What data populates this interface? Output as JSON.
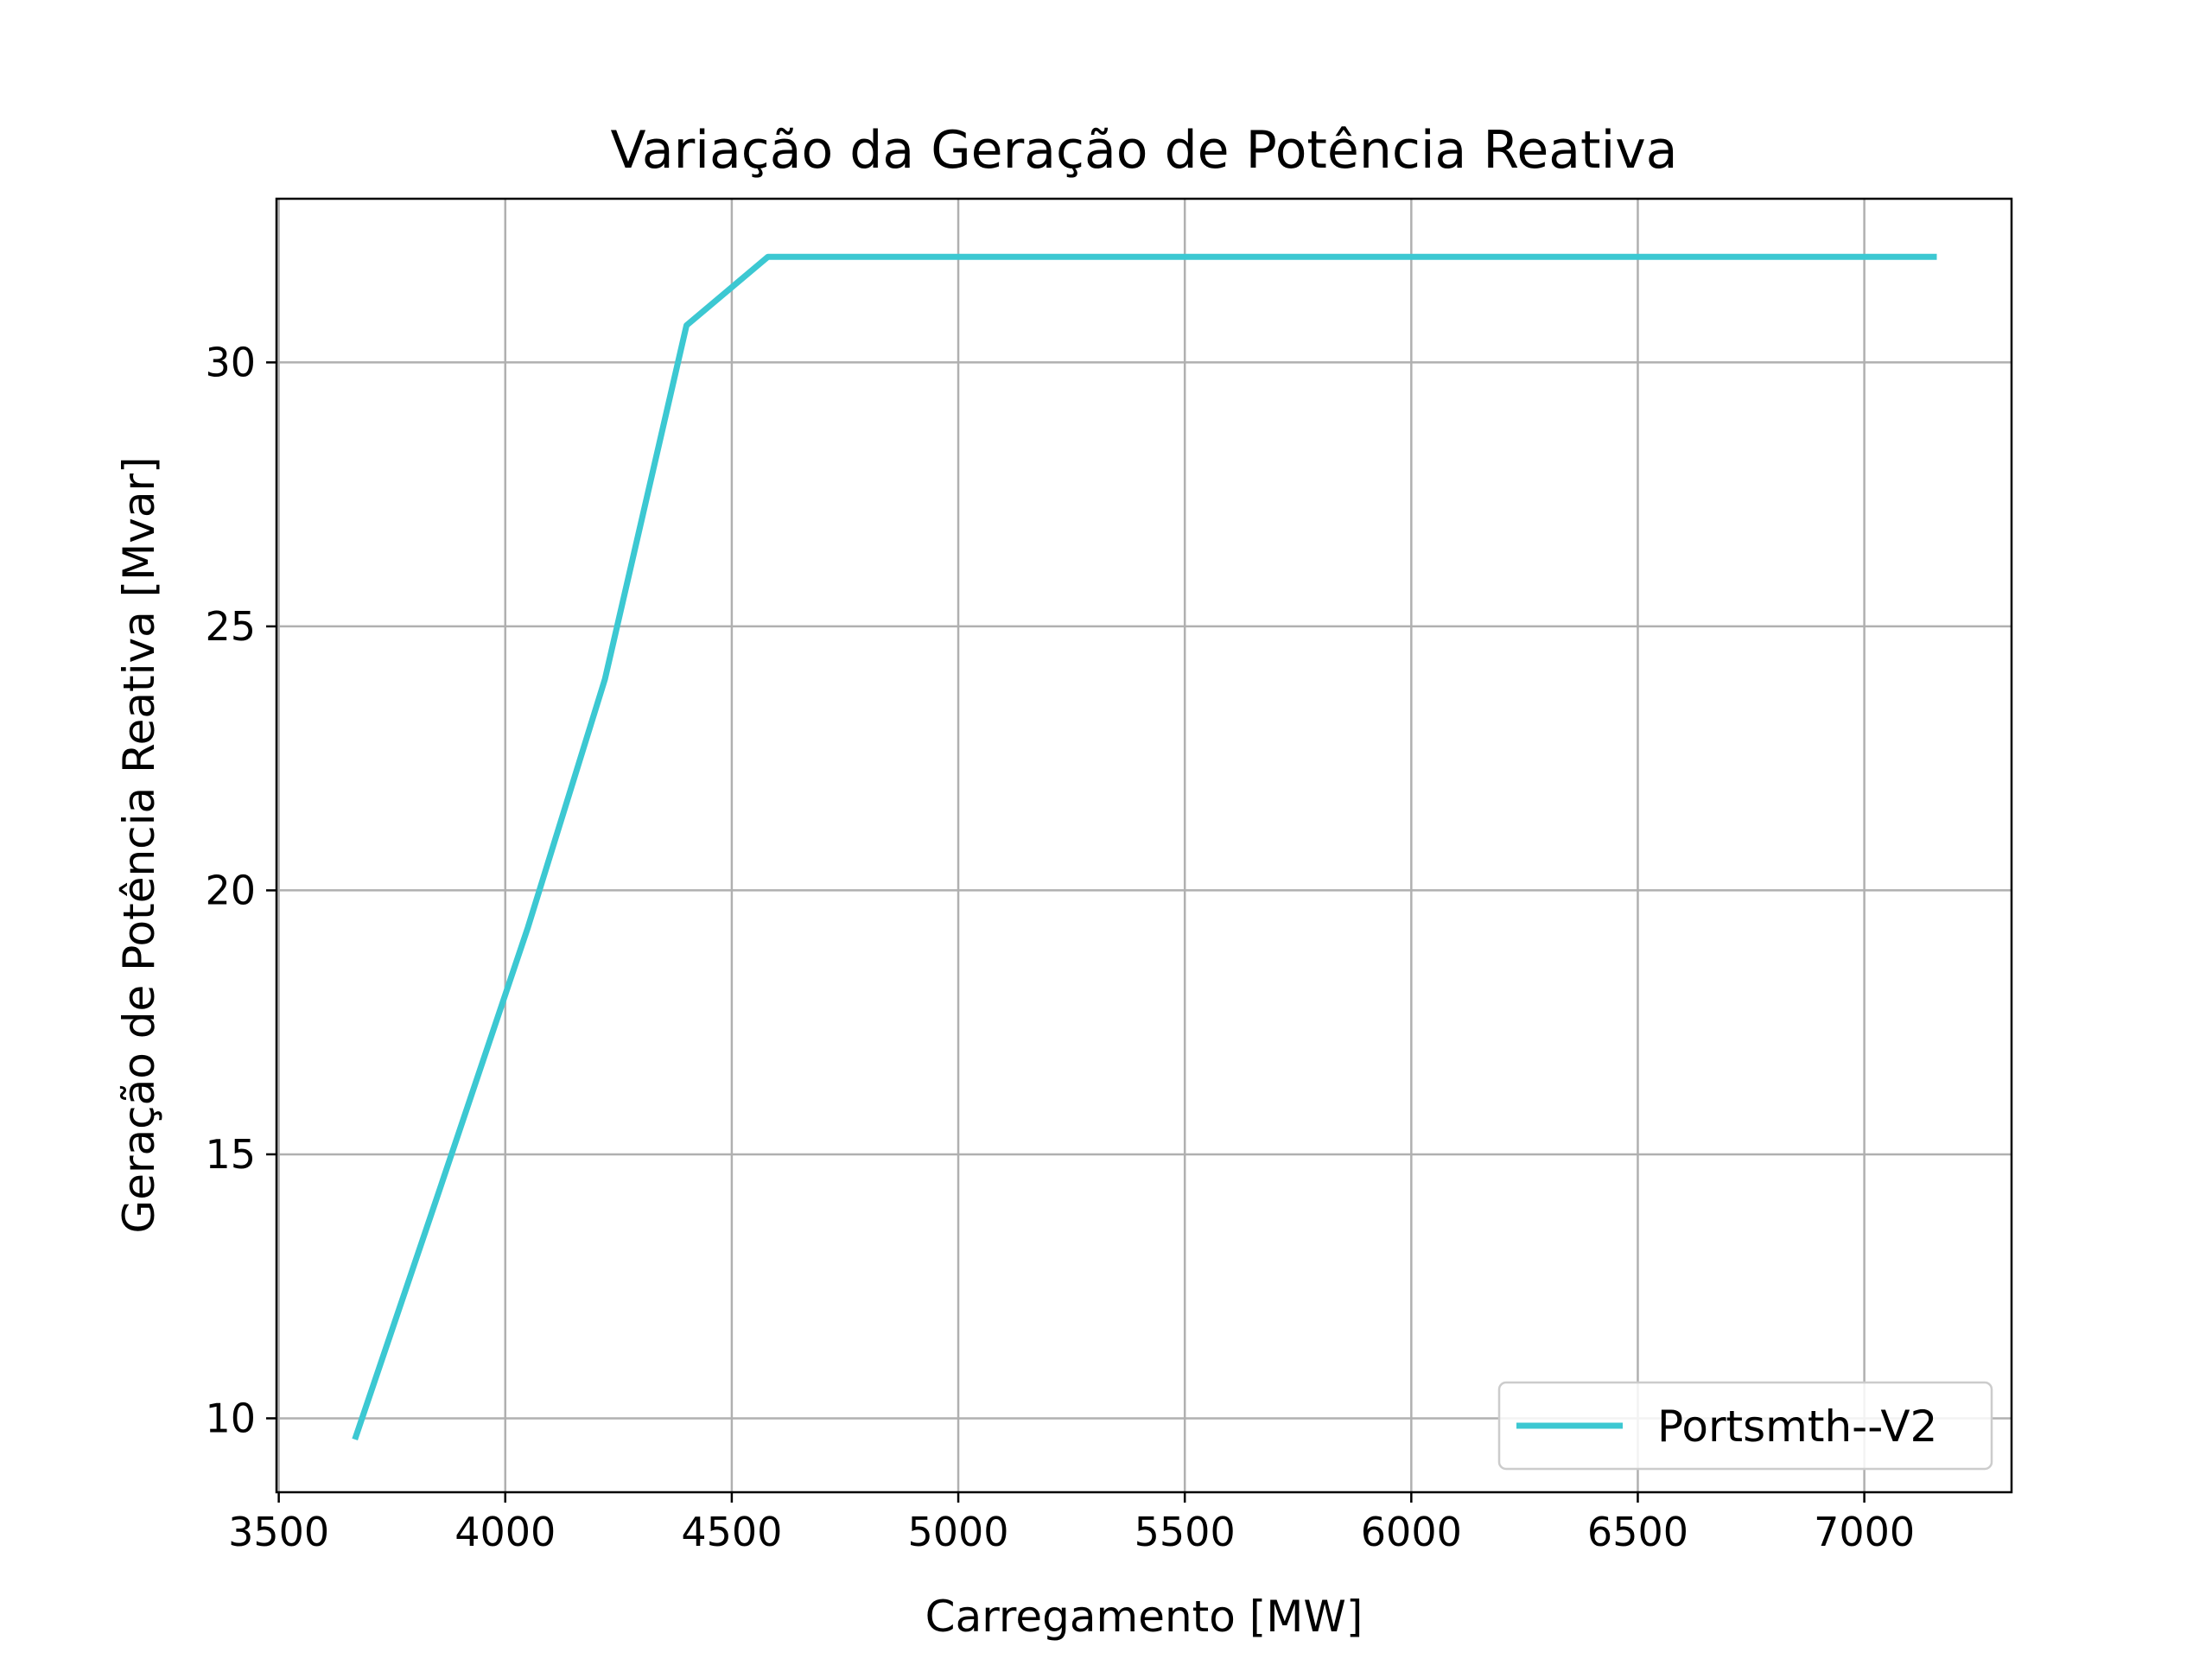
{
  "chart_data": {
    "type": "line",
    "title": "Variação da Geração de Potência Reativa",
    "xlabel": "Carregamento [MW]",
    "ylabel": "Geração de Potência Reativa [Mvar]",
    "xlim": [
      3495,
      7325
    ],
    "ylim": [
      8.6,
      33.1
    ],
    "x_ticks": [
      3500,
      4000,
      4500,
      5000,
      5500,
      6000,
      6500,
      7000
    ],
    "x_tick_labels": [
      "3500",
      "4000",
      "4500",
      "5000",
      "5500",
      "6000",
      "6500",
      "7000"
    ],
    "y_ticks": [
      10,
      15,
      20,
      25,
      30
    ],
    "y_tick_labels": [
      "10",
      "15",
      "20",
      "25",
      "30"
    ],
    "grid": true,
    "legend_position": "lower right",
    "series": [
      {
        "name": "Portsmth--V2",
        "color": "#3cc8d2",
        "x": [
          3668,
          3850,
          4050,
          4220,
          4400,
          4580,
          5000,
          5500,
          6000,
          6500,
          7000,
          7160
        ],
        "y": [
          9.6,
          14.2,
          19.3,
          24.0,
          30.7,
          32.0,
          32.0,
          32.0,
          32.0,
          32.0,
          32.0,
          32.0
        ]
      }
    ]
  }
}
